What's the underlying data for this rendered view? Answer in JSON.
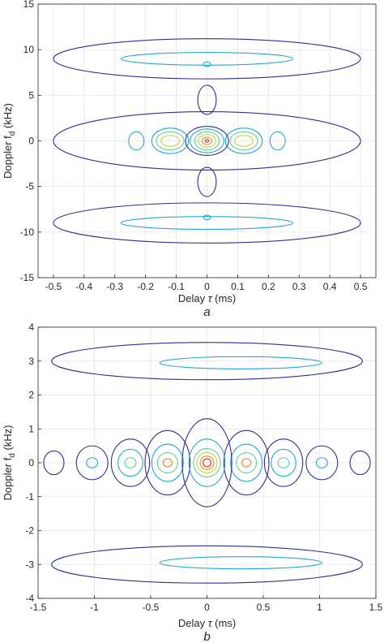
{
  "chart_data": [
    {
      "type": "contour",
      "panel_label": "a",
      "xlabel": {
        "main": "Delay ",
        "greek": "τ",
        "unit": " (ms)"
      },
      "ylabel": {
        "main": "Doppler f",
        "sub": "d",
        "unit": " (kHz)"
      },
      "xlim": [
        -0.55,
        0.55
      ],
      "ylim": [
        -15,
        15
      ],
      "xticks": [
        -0.5,
        -0.4,
        -0.3,
        -0.2,
        -0.1,
        0,
        0.1,
        0.2,
        0.3,
        0.4,
        0.5
      ],
      "xtick_labels": [
        "-0.5",
        "-0.4",
        "-0.3",
        "-0.2",
        "-0.1",
        "0",
        "0.1",
        "0.2",
        "0.3",
        "0.4",
        "0.5"
      ],
      "yticks": [
        -15,
        -10,
        -5,
        0,
        5,
        10,
        15
      ],
      "ytick_labels": [
        "-15",
        "-10",
        "-5",
        "0",
        "5",
        "10",
        "15"
      ],
      "grid": true,
      "level_colors": [
        "#2e2f8f",
        "#26a6d6",
        "#5fcf9a",
        "#c9d62e",
        "#f08a1c",
        "#d6201c"
      ],
      "contours": [
        {
          "level": 1,
          "cx": 0,
          "cy": 9,
          "rx": 0.5,
          "ry": 2.2
        },
        {
          "level": 1,
          "cx": 0,
          "cy": -9,
          "rx": 0.5,
          "ry": 2.2
        },
        {
          "level": 2,
          "cx": 0,
          "cy": 9,
          "rx": 0.28,
          "ry": 0.7
        },
        {
          "level": 2,
          "cx": 0,
          "cy": -9,
          "rx": 0.28,
          "ry": 0.7
        },
        {
          "level": 2,
          "cx": 0,
          "cy": 8.4,
          "rx": 0.012,
          "ry": 0.25
        },
        {
          "level": 2,
          "cx": 0,
          "cy": -8.4,
          "rx": 0.012,
          "ry": 0.25
        },
        {
          "level": 1,
          "cx": 0,
          "cy": 0,
          "rx": 0.5,
          "ry": 3.2
        },
        {
          "level": 1,
          "cx": 0,
          "cy": 4.5,
          "rx": 0.03,
          "ry": 1.6
        },
        {
          "level": 1,
          "cx": 0,
          "cy": -4.5,
          "rx": 0.03,
          "ry": 1.6
        },
        {
          "level": 2,
          "cx": -0.23,
          "cy": 0,
          "rx": 0.025,
          "ry": 1.0
        },
        {
          "level": 2,
          "cx": 0.23,
          "cy": 0,
          "rx": 0.025,
          "ry": 1.0
        },
        {
          "level": 2,
          "cx": -0.12,
          "cy": 0,
          "rx": 0.06,
          "ry": 1.4
        },
        {
          "level": 3,
          "cx": -0.12,
          "cy": 0,
          "rx": 0.045,
          "ry": 1.0
        },
        {
          "level": 4,
          "cx": -0.12,
          "cy": 0,
          "rx": 0.03,
          "ry": 0.6
        },
        {
          "level": 2,
          "cx": 0.12,
          "cy": 0,
          "rx": 0.06,
          "ry": 1.4
        },
        {
          "level": 3,
          "cx": 0.12,
          "cy": 0,
          "rx": 0.045,
          "ry": 1.0
        },
        {
          "level": 4,
          "cx": 0.12,
          "cy": 0,
          "rx": 0.03,
          "ry": 0.6
        },
        {
          "level": 1,
          "cx": 0,
          "cy": 0,
          "rx": 0.07,
          "ry": 1.6
        },
        {
          "level": 2,
          "cx": 0,
          "cy": 0,
          "rx": 0.055,
          "ry": 1.3
        },
        {
          "level": 3,
          "cx": 0,
          "cy": 0,
          "rx": 0.04,
          "ry": 1.0
        },
        {
          "level": 4,
          "cx": 0,
          "cy": 0,
          "rx": 0.028,
          "ry": 0.7
        },
        {
          "level": 5,
          "cx": 0,
          "cy": 0,
          "rx": 0.016,
          "ry": 0.4
        },
        {
          "level": 6,
          "cx": 0,
          "cy": 0,
          "rx": 0.006,
          "ry": 0.15
        }
      ]
    },
    {
      "type": "contour",
      "panel_label": "b",
      "xlabel": {
        "main": "Delay ",
        "greek": "τ",
        "unit": " (ms)"
      },
      "ylabel": {
        "main": "Doppler f",
        "sub": "d",
        "unit": " (kHz)"
      },
      "xlim": [
        -1.5,
        1.5
      ],
      "ylim": [
        -4,
        4
      ],
      "xticks": [
        -1.5,
        -1,
        -0.5,
        0,
        0.5,
        1,
        1.5
      ],
      "xtick_labels": [
        "-1.5",
        "-1",
        "-0.5",
        "0",
        "0.5",
        "1",
        "1.5"
      ],
      "yticks": [
        -4,
        -3,
        -2,
        -1,
        0,
        1,
        2,
        3,
        4
      ],
      "ytick_labels": [
        "-4",
        "-3",
        "-2",
        "-1",
        "0",
        "1",
        "2",
        "3",
        "4"
      ],
      "grid": true,
      "level_colors": [
        "#2e2f8f",
        "#26a6d6",
        "#5fcf9a",
        "#c9d62e",
        "#f08a1c",
        "#d6201c"
      ],
      "contours": [
        {
          "level": 1,
          "cx": 0,
          "cy": 3.0,
          "rx": 1.38,
          "ry": 0.55
        },
        {
          "level": 2,
          "cx": 0.3,
          "cy": 2.95,
          "rx": 0.72,
          "ry": 0.18
        },
        {
          "level": 1,
          "cx": 0,
          "cy": -3.0,
          "rx": 1.38,
          "ry": 0.55
        },
        {
          "level": 2,
          "cx": 0.3,
          "cy": -2.95,
          "rx": 0.72,
          "ry": 0.18
        },
        {
          "level": 1,
          "cx": -1.36,
          "cy": 0,
          "rx": 0.09,
          "ry": 0.35
        },
        {
          "level": 1,
          "cx": 1.36,
          "cy": 0,
          "rx": 0.09,
          "ry": 0.35
        },
        {
          "level": 1,
          "cx": -1.02,
          "cy": 0,
          "rx": 0.14,
          "ry": 0.5
        },
        {
          "level": 2,
          "cx": -1.02,
          "cy": 0,
          "rx": 0.05,
          "ry": 0.15
        },
        {
          "level": 1,
          "cx": 1.02,
          "cy": 0,
          "rx": 0.14,
          "ry": 0.5
        },
        {
          "level": 2,
          "cx": 1.02,
          "cy": 0,
          "rx": 0.05,
          "ry": 0.15
        },
        {
          "level": 1,
          "cx": -0.68,
          "cy": 0,
          "rx": 0.17,
          "ry": 0.7
        },
        {
          "level": 2,
          "cx": -0.68,
          "cy": 0,
          "rx": 0.11,
          "ry": 0.4
        },
        {
          "level": 3,
          "cx": -0.68,
          "cy": 0,
          "rx": 0.05,
          "ry": 0.15
        },
        {
          "level": 1,
          "cx": 0.68,
          "cy": 0,
          "rx": 0.17,
          "ry": 0.7
        },
        {
          "level": 2,
          "cx": 0.68,
          "cy": 0,
          "rx": 0.11,
          "ry": 0.4
        },
        {
          "level": 3,
          "cx": 0.68,
          "cy": 0,
          "rx": 0.05,
          "ry": 0.15
        },
        {
          "level": 1,
          "cx": -0.35,
          "cy": 0,
          "rx": 0.2,
          "ry": 0.95
        },
        {
          "level": 2,
          "cx": -0.35,
          "cy": 0,
          "rx": 0.14,
          "ry": 0.55
        },
        {
          "level": 3,
          "cx": -0.35,
          "cy": 0,
          "rx": 0.09,
          "ry": 0.3
        },
        {
          "level": 5,
          "cx": -0.35,
          "cy": 0,
          "rx": 0.04,
          "ry": 0.12
        },
        {
          "level": 1,
          "cx": 0.35,
          "cy": 0,
          "rx": 0.2,
          "ry": 0.95
        },
        {
          "level": 2,
          "cx": 0.35,
          "cy": 0,
          "rx": 0.14,
          "ry": 0.55
        },
        {
          "level": 3,
          "cx": 0.35,
          "cy": 0,
          "rx": 0.09,
          "ry": 0.3
        },
        {
          "level": 5,
          "cx": 0.35,
          "cy": 0,
          "rx": 0.04,
          "ry": 0.12
        },
        {
          "level": 1,
          "cx": 0,
          "cy": 0,
          "rx": 0.22,
          "ry": 1.3
        },
        {
          "level": 2,
          "cx": 0,
          "cy": 0,
          "rx": 0.16,
          "ry": 0.7
        },
        {
          "level": 3,
          "cx": 0,
          "cy": 0,
          "rx": 0.12,
          "ry": 0.42
        },
        {
          "level": 4,
          "cx": 0,
          "cy": 0,
          "rx": 0.09,
          "ry": 0.3
        },
        {
          "level": 5,
          "cx": 0,
          "cy": 0,
          "rx": 0.06,
          "ry": 0.2
        },
        {
          "level": 6,
          "cx": 0,
          "cy": 0,
          "rx": 0.035,
          "ry": 0.12
        }
      ]
    }
  ]
}
